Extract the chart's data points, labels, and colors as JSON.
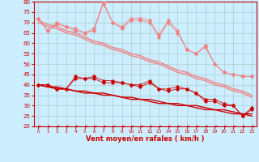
{
  "xlabel": "Vent moyen/en rafales ( km/h )",
  "ylabel": "",
  "background_color": "#cceeff",
  "grid_color": "#aacccc",
  "x": [
    0,
    1,
    2,
    3,
    4,
    5,
    6,
    7,
    8,
    9,
    10,
    11,
    12,
    13,
    14,
    15,
    16,
    17,
    18,
    19,
    20,
    21,
    22,
    23
  ],
  "rafales_line1": [
    72,
    66,
    70,
    68,
    67,
    65,
    67,
    80,
    70,
    68,
    72,
    72,
    71,
    64,
    71,
    66,
    57,
    55,
    59,
    50,
    46,
    45,
    44,
    44
  ],
  "rafales_line2": [
    72,
    66,
    69,
    68,
    66,
    65,
    66,
    79,
    70,
    67,
    71,
    71,
    70,
    63,
    70,
    65,
    57,
    55,
    58,
    50,
    46,
    45,
    44,
    44
  ],
  "trend_rafales1": [
    71,
    69,
    68,
    66,
    65,
    63,
    61,
    60,
    58,
    57,
    55,
    54,
    52,
    51,
    49,
    47,
    46,
    44,
    43,
    41,
    40,
    38,
    37,
    35
  ],
  "trend_rafales2": [
    70,
    68,
    67,
    65,
    64,
    62,
    60,
    59,
    57,
    56,
    54,
    53,
    51,
    50,
    48,
    46,
    45,
    43,
    42,
    40,
    39,
    37,
    36,
    34
  ],
  "moyen_line1": [
    40,
    40,
    38,
    38,
    44,
    43,
    44,
    42,
    42,
    41,
    40,
    40,
    42,
    38,
    38,
    39,
    38,
    36,
    33,
    33,
    31,
    30,
    25,
    29
  ],
  "moyen_line2": [
    40,
    40,
    38,
    38,
    43,
    43,
    43,
    41,
    41,
    41,
    40,
    39,
    41,
    38,
    37,
    38,
    38,
    36,
    32,
    32,
    30,
    30,
    25,
    28
  ],
  "trend_moyen1": [
    40,
    39,
    39,
    38,
    37,
    37,
    36,
    36,
    35,
    34,
    34,
    33,
    33,
    32,
    31,
    31,
    30,
    30,
    29,
    28,
    28,
    27,
    26,
    26
  ],
  "trend_moyen2": [
    40,
    39,
    38,
    38,
    37,
    36,
    36,
    35,
    35,
    34,
    33,
    33,
    32,
    31,
    31,
    30,
    30,
    29,
    28,
    28,
    27,
    26,
    26,
    25
  ],
  "color_rafales": "#f08080",
  "color_moyen": "#cc0000",
  "color_trend_rafales": "#f08080",
  "color_trend_moyen": "#cc0000",
  "ylim": [
    20,
    80
  ],
  "yticks": [
    20,
    25,
    30,
    35,
    40,
    45,
    50,
    55,
    60,
    65,
    70,
    75,
    80
  ],
  "marker": "D",
  "markersize": 1.8,
  "lw_data": 0.6,
  "lw_trend": 1.0
}
